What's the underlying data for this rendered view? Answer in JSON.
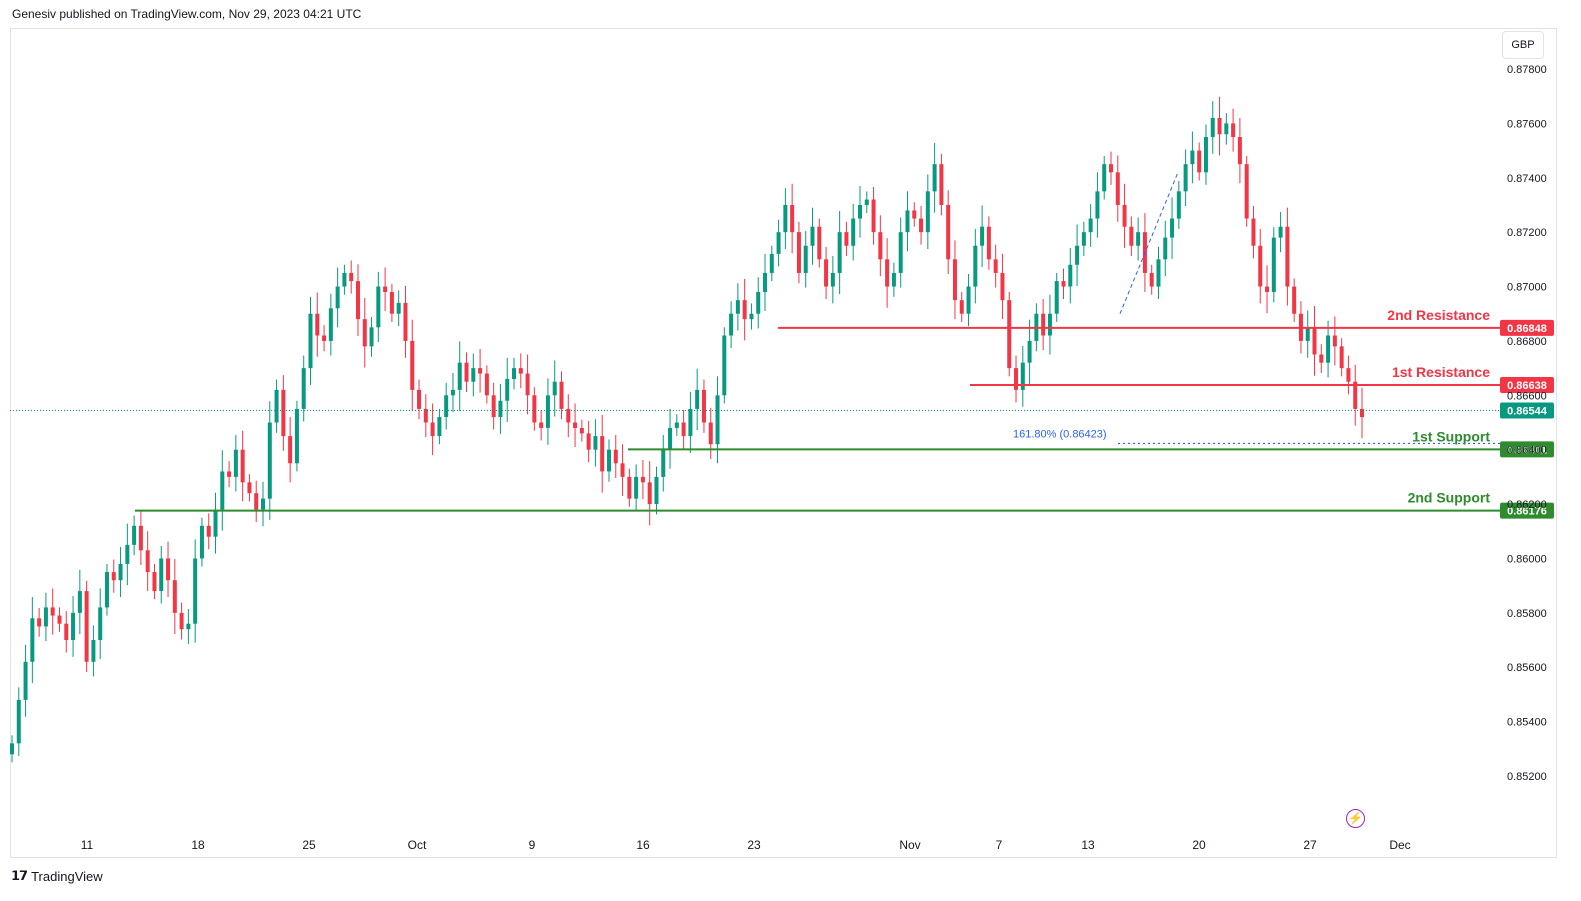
{
  "header": {
    "publisher": "Genesiv published on TradingView.com, Nov 29, 2023 04:21 UTC"
  },
  "currency": "GBP",
  "footer": {
    "brand": "TradingView",
    "logo_icon": "tradingview-logo-icon"
  },
  "colors": {
    "up": "#089981",
    "down": "#f23645",
    "support": "#2e8b2e",
    "resistance": "#f23645",
    "fib": "#2962ff"
  },
  "chart_data": {
    "type": "candlestick",
    "title": "",
    "ylim": [
      0.851,
      0.879
    ],
    "y_ticks": [
      "0.85200",
      "0.85400",
      "0.85600",
      "0.85800",
      "0.86000",
      "0.86200",
      "0.86400",
      "0.86600",
      "0.86800",
      "0.87000",
      "0.87200",
      "0.87400",
      "0.87600",
      "0.87800"
    ],
    "x_ticks": [
      "11",
      "18",
      "25",
      "Oct",
      "9",
      "16",
      "23",
      "Nov",
      "7",
      "13",
      "20",
      "27",
      "Dec"
    ],
    "last_price": "0.86544",
    "levels": [
      {
        "label": "2nd Resistance",
        "value": 0.86848,
        "price_label": "0.86848",
        "kind": "resistance"
      },
      {
        "label": "1st Resistance",
        "value": 0.86638,
        "price_label": "0.86638",
        "kind": "resistance"
      },
      {
        "label": "1st Support",
        "value": 0.86401,
        "price_label": "0.86401",
        "kind": "support"
      },
      {
        "label": "2nd Support",
        "value": 0.86176,
        "price_label": "0.86176",
        "kind": "support"
      }
    ],
    "fib": {
      "label": "161.80% (0.86423)",
      "value": 0.86423
    },
    "closes": [
      0.8532,
      0.8548,
      0.8562,
      0.8578,
      0.8575,
      0.8582,
      0.8579,
      0.8576,
      0.857,
      0.858,
      0.8588,
      0.8562,
      0.857,
      0.8582,
      0.8595,
      0.8592,
      0.8598,
      0.8605,
      0.8612,
      0.8603,
      0.8595,
      0.8588,
      0.86,
      0.8592,
      0.858,
      0.8574,
      0.8576,
      0.86,
      0.8612,
      0.8608,
      0.8618,
      0.8632,
      0.863,
      0.864,
      0.8628,
      0.8624,
      0.8618,
      0.8622,
      0.865,
      0.8662,
      0.8645,
      0.8635,
      0.8655,
      0.867,
      0.869,
      0.8682,
      0.868,
      0.8692,
      0.87,
      0.8705,
      0.8702,
      0.8688,
      0.8678,
      0.8685,
      0.87,
      0.8698,
      0.869,
      0.8694,
      0.868,
      0.8662,
      0.8655,
      0.865,
      0.8645,
      0.8652,
      0.866,
      0.8662,
      0.8672,
      0.8665,
      0.867,
      0.8668,
      0.866,
      0.8652,
      0.8658,
      0.8666,
      0.867,
      0.8668,
      0.866,
      0.865,
      0.8648,
      0.866,
      0.8665,
      0.8655,
      0.865,
      0.8648,
      0.8646,
      0.864,
      0.8645,
      0.8632,
      0.864,
      0.8635,
      0.863,
      0.8622,
      0.863,
      0.8628,
      0.862,
      0.863,
      0.864,
      0.8648,
      0.865,
      0.8645,
      0.8655,
      0.8662,
      0.865,
      0.8642,
      0.866,
      0.8682,
      0.869,
      0.8695,
      0.8688,
      0.869,
      0.8698,
      0.8705,
      0.8712,
      0.872,
      0.873,
      0.872,
      0.8705,
      0.8715,
      0.8722,
      0.871,
      0.87,
      0.8705,
      0.872,
      0.8715,
      0.8725,
      0.873,
      0.8732,
      0.872,
      0.871,
      0.87,
      0.8705,
      0.872,
      0.8728,
      0.8725,
      0.872,
      0.8735,
      0.8745,
      0.873,
      0.871,
      0.8695,
      0.869,
      0.87,
      0.8715,
      0.8722,
      0.871,
      0.8705,
      0.8695,
      0.867,
      0.8662,
      0.8672,
      0.868,
      0.869,
      0.8682,
      0.869,
      0.8702,
      0.87,
      0.8708,
      0.8715,
      0.872,
      0.8725,
      0.8735,
      0.8745,
      0.8742,
      0.873,
      0.8722,
      0.8715,
      0.872,
      0.8705,
      0.87,
      0.871,
      0.8718,
      0.8725,
      0.8735,
      0.8745,
      0.875,
      0.8742,
      0.8755,
      0.8762,
      0.8756,
      0.876,
      0.8755,
      0.8745,
      0.8725,
      0.8715,
      0.87,
      0.8698,
      0.8718,
      0.8722,
      0.87,
      0.869,
      0.868,
      0.8685,
      0.8675,
      0.8672,
      0.8682,
      0.8678,
      0.867,
      0.8665,
      0.8655,
      0.8652
    ]
  }
}
